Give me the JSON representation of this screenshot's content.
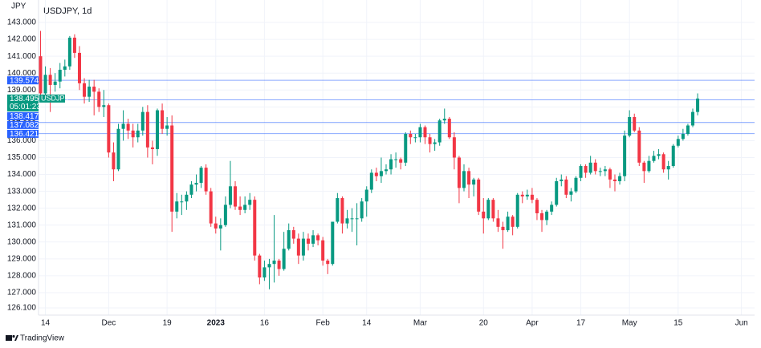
{
  "chart_data": {
    "type": "candlestick",
    "title": "USDJPY, 1d",
    "y_axis_label": "JPY",
    "series": [
      {
        "name": "USDJPY",
        "up_color": "#089981",
        "down_color": "#f23645",
        "open": [
          141.0,
          138.8,
          139.9,
          139.3,
          139.5,
          140.2,
          140.4,
          142.1,
          141.2,
          139.4,
          138.6,
          139.2,
          138.9,
          138.0,
          138.1,
          135.3,
          134.3,
          136.7,
          137.0,
          136.6,
          136.2,
          136.6,
          137.7,
          135.6,
          135.5,
          137.8,
          136.7,
          136.9,
          131.8,
          132.4,
          132.4,
          132.8,
          133.4,
          133.5,
          134.4,
          133.0,
          131.1,
          130.8,
          131.0,
          132.2,
          133.3,
          132.1,
          131.9,
          132.2,
          132.5,
          129.2,
          127.9,
          128.5,
          128.7,
          128.9,
          128.4,
          129.6,
          130.7,
          130.2,
          129.2,
          130.2,
          129.9,
          130.4,
          130.1,
          128.9,
          128.7,
          131.2,
          132.6,
          131.1,
          131.4,
          131.4,
          131.4,
          132.4,
          133.1,
          134.1,
          133.9,
          134.2,
          134.3,
          134.9,
          134.9,
          134.7,
          136.4,
          136.2,
          136.2,
          136.8,
          136.2,
          135.8,
          135.9,
          137.2,
          137.3,
          136.2,
          135.0,
          133.2,
          134.2,
          133.4,
          133.7,
          131.8,
          131.4,
          132.5,
          131.4,
          130.9,
          130.7,
          131.5,
          130.9,
          132.8,
          132.7,
          132.8,
          132.5,
          131.7,
          131.3,
          131.8,
          132.2,
          133.6,
          133.7,
          132.8,
          133.0,
          133.8,
          134.5,
          134.1,
          134.7,
          134.2,
          134.2,
          134.3,
          133.7,
          133.6,
          133.9,
          136.3,
          137.4,
          136.6,
          134.7,
          134.2,
          134.8,
          135.1,
          135.2,
          134.3,
          134.5,
          135.7,
          136.1,
          136.4,
          136.9,
          137.7
        ],
        "high": [
          142.5,
          140.4,
          140.3,
          140.0,
          140.6,
          140.8,
          142.2,
          142.3,
          141.6,
          139.7,
          139.6,
          139.6,
          139.1,
          139.0,
          138.2,
          135.9,
          137.0,
          137.8,
          137.3,
          137.0,
          137.0,
          138.0,
          138.1,
          136.0,
          137.9,
          138.2,
          137.4,
          137.5,
          132.9,
          132.8,
          133.0,
          133.6,
          134.0,
          134.5,
          134.6,
          133.2,
          131.5,
          131.4,
          132.7,
          134.8,
          133.6,
          132.7,
          132.7,
          132.9,
          132.7,
          129.3,
          128.9,
          129.0,
          131.6,
          129.0,
          130.6,
          131.1,
          130.9,
          130.5,
          130.6,
          130.5,
          130.7,
          130.5,
          130.3,
          129.0,
          131.2,
          132.9,
          132.7,
          131.9,
          132.0,
          132.3,
          132.6,
          133.3,
          134.3,
          134.4,
          135.0,
          134.6,
          135.2,
          135.3,
          135.0,
          136.5,
          136.6,
          136.4,
          137.0,
          136.9,
          136.4,
          136.1,
          137.3,
          137.9,
          137.4,
          136.5,
          135.1,
          134.6,
          134.4,
          133.8,
          133.8,
          132.6,
          132.6,
          132.6,
          131.9,
          131.2,
          131.8,
          131.6,
          132.9,
          133.0,
          133.1,
          133.2,
          132.6,
          131.9,
          131.9,
          132.4,
          133.8,
          134.0,
          133.9,
          133.2,
          133.9,
          134.6,
          134.6,
          135.1,
          134.9,
          134.4,
          134.5,
          134.4,
          134.0,
          134.1,
          136.6,
          137.8,
          137.6,
          136.8,
          134.8,
          135.1,
          135.4,
          135.5,
          135.3,
          134.8,
          135.8,
          136.3,
          136.7,
          137.0,
          137.9,
          138.8
        ],
        "low": [
          138.5,
          138.4,
          137.7,
          138.9,
          139.1,
          139.8,
          140.2,
          140.9,
          139.0,
          138.2,
          138.3,
          137.5,
          137.7,
          137.4,
          135.0,
          133.6,
          134.2,
          136.0,
          136.1,
          135.6,
          135.9,
          136.3,
          135.0,
          134.6,
          135.1,
          136.4,
          136.3,
          130.6,
          131.4,
          131.6,
          131.9,
          132.6,
          133.0,
          133.2,
          132.8,
          130.9,
          130.5,
          129.5,
          130.9,
          132.0,
          131.9,
          131.6,
          131.7,
          131.9,
          128.9,
          127.5,
          127.7,
          127.2,
          127.6,
          128.0,
          128.3,
          129.5,
          129.9,
          128.7,
          128.9,
          129.5,
          129.7,
          129.8,
          128.6,
          128.1,
          128.6,
          131.1,
          130.5,
          130.8,
          130.6,
          129.8,
          131.2,
          131.5,
          132.9,
          133.6,
          133.5,
          134.0,
          134.0,
          134.4,
          134.3,
          134.5,
          135.8,
          135.9,
          135.9,
          135.8,
          135.3,
          135.4,
          135.7,
          137.0,
          136.1,
          134.3,
          132.3,
          133.0,
          132.6,
          132.7,
          131.6,
          130.5,
          131.3,
          131.2,
          130.6,
          129.6,
          130.6,
          130.4,
          130.8,
          132.3,
          132.5,
          132.3,
          131.3,
          130.6,
          131.0,
          131.6,
          132.1,
          133.3,
          132.6,
          132.4,
          132.9,
          133.6,
          133.8,
          134.0,
          134.0,
          133.9,
          133.9,
          133.2,
          133.0,
          133.4,
          133.6,
          136.2,
          136.5,
          134.5,
          133.5,
          134.1,
          134.7,
          134.9,
          134.1,
          133.7,
          134.4,
          135.6,
          136.0,
          136.3,
          136.8,
          137.5
        ],
        "close": [
          138.8,
          139.9,
          139.3,
          139.5,
          140.2,
          140.4,
          142.1,
          141.2,
          139.4,
          138.6,
          139.2,
          138.9,
          138.0,
          138.1,
          135.3,
          134.3,
          136.7,
          137.0,
          136.6,
          136.2,
          136.6,
          137.7,
          135.6,
          135.5,
          137.8,
          136.7,
          136.9,
          131.8,
          132.4,
          132.4,
          132.8,
          133.4,
          133.5,
          134.4,
          133.0,
          131.1,
          130.8,
          131.0,
          132.2,
          133.3,
          132.1,
          131.9,
          132.2,
          132.5,
          129.2,
          127.9,
          128.5,
          128.7,
          128.9,
          128.4,
          129.6,
          130.7,
          130.2,
          129.2,
          130.2,
          129.9,
          130.4,
          130.1,
          128.9,
          128.7,
          131.2,
          132.6,
          131.1,
          131.4,
          131.4,
          131.4,
          132.4,
          133.1,
          134.1,
          133.9,
          134.2,
          134.3,
          134.9,
          134.9,
          134.7,
          136.4,
          136.2,
          136.2,
          136.8,
          136.2,
          135.8,
          135.9,
          137.2,
          137.3,
          136.2,
          135.0,
          133.2,
          134.2,
          133.4,
          133.7,
          131.8,
          131.4,
          132.5,
          131.4,
          130.9,
          130.7,
          131.5,
          130.9,
          132.8,
          132.7,
          132.8,
          132.5,
          131.7,
          131.3,
          131.8,
          132.2,
          133.6,
          133.7,
          132.8,
          133.0,
          133.8,
          134.5,
          134.1,
          134.7,
          134.2,
          134.2,
          134.3,
          133.7,
          133.6,
          133.9,
          136.3,
          137.4,
          136.6,
          134.7,
          134.2,
          134.8,
          135.1,
          135.2,
          134.3,
          134.5,
          135.7,
          136.1,
          136.4,
          136.9,
          137.7,
          138.495
        ]
      }
    ],
    "countdown": "05:01:23",
    "levels": [
      139.574,
      138.417,
      137.082,
      136.421
    ],
    "level_color": "#2962ff",
    "xlim": [
      -0.41,
      146.7
    ],
    "ylim": [
      125.67,
      144.33
    ],
    "xticks": [
      {
        "value": 1,
        "label": "14"
      },
      {
        "value": 14,
        "label": "Dec"
      },
      {
        "value": 26,
        "label": "19"
      },
      {
        "value": 36,
        "label": "2023"
      },
      {
        "value": 46,
        "label": "16"
      },
      {
        "value": 58,
        "label": "Feb"
      },
      {
        "value": 67,
        "label": "14"
      },
      {
        "value": 78,
        "label": "Mar"
      },
      {
        "value": 91,
        "label": "20"
      },
      {
        "value": 101,
        "label": "Apr"
      },
      {
        "value": 111,
        "label": "17"
      },
      {
        "value": 121,
        "label": "May"
      },
      {
        "value": 131,
        "label": "15"
      },
      {
        "value": 144,
        "label": "Jun"
      }
    ],
    "yticks": [
      {
        "value": 126.1,
        "label": "126.100"
      },
      {
        "value": 127,
        "label": "127.000"
      },
      {
        "value": 128,
        "label": "128.000"
      },
      {
        "value": 129,
        "label": "129.000"
      },
      {
        "value": 130,
        "label": "130.000"
      },
      {
        "value": 131,
        "label": "131.000"
      },
      {
        "value": 132,
        "label": "132.000"
      },
      {
        "value": 133,
        "label": "133.000"
      },
      {
        "value": 134,
        "label": "134.000"
      },
      {
        "value": 135,
        "label": "135.000"
      },
      {
        "value": 136,
        "label": "136.000"
      },
      {
        "value": 137,
        "label": "137.000"
      },
      {
        "value": 138,
        "label": "138.000"
      },
      {
        "value": 139,
        "label": "139.000"
      },
      {
        "value": 140,
        "label": "140.000"
      },
      {
        "value": 141,
        "label": "141.000"
      },
      {
        "value": 142,
        "label": "142.000"
      },
      {
        "value": 143,
        "label": "143.000"
      }
    ],
    "grid": true,
    "brand": "TradingView"
  }
}
